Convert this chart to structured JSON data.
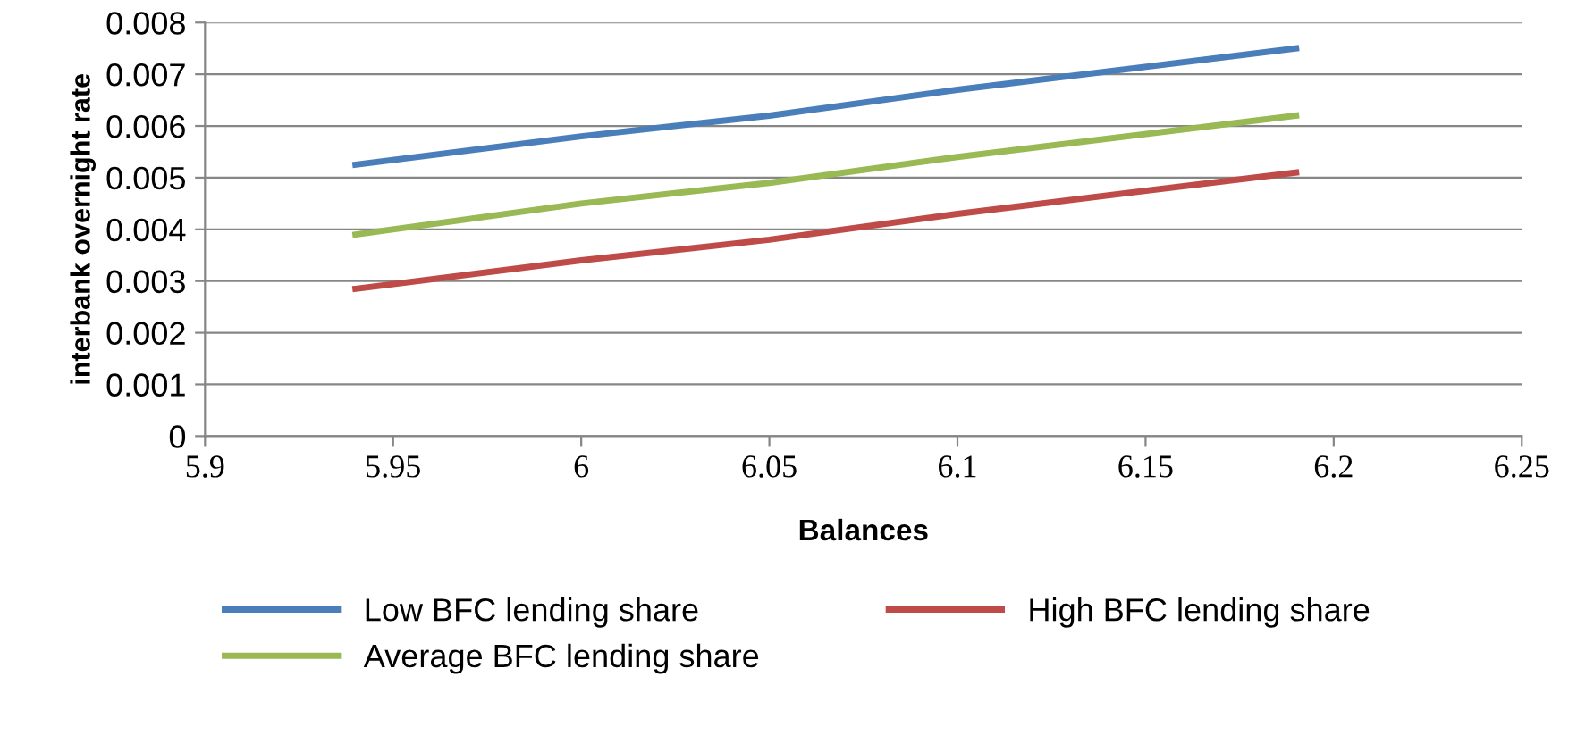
{
  "chart_data": {
    "type": "line",
    "xlabel": "Balances",
    "ylabel": "interbank overnight rate",
    "xlim": [
      5.9,
      6.25
    ],
    "xticks": [
      5.9,
      5.95,
      6,
      6.05,
      6.1,
      6.15,
      6.2,
      6.25
    ],
    "ylim": [
      0,
      0.008
    ],
    "yticks": [
      0,
      0.001,
      0.002,
      0.003,
      0.004,
      0.005,
      0.006,
      0.007,
      0.008
    ],
    "grid": "y",
    "legend": "bottom",
    "series": [
      {
        "name": "Low BFC lending share",
        "color": "#4a7ebb",
        "x": [
          5.94,
          6.0,
          6.05,
          6.1,
          6.19
        ],
        "values": [
          0.00525,
          0.0058,
          0.0062,
          0.0067,
          0.0075
        ]
      },
      {
        "name": "High BFC lending share",
        "color": "#be4b48",
        "x": [
          5.94,
          6.0,
          6.05,
          6.1,
          6.19
        ],
        "values": [
          0.00285,
          0.0034,
          0.0038,
          0.0043,
          0.0051
        ]
      },
      {
        "name": "Average BFC lending share",
        "color": "#98b954",
        "x": [
          5.94,
          6.0,
          6.05,
          6.1,
          6.19
        ],
        "values": [
          0.0039,
          0.0045,
          0.0049,
          0.0054,
          0.0062
        ]
      }
    ]
  }
}
